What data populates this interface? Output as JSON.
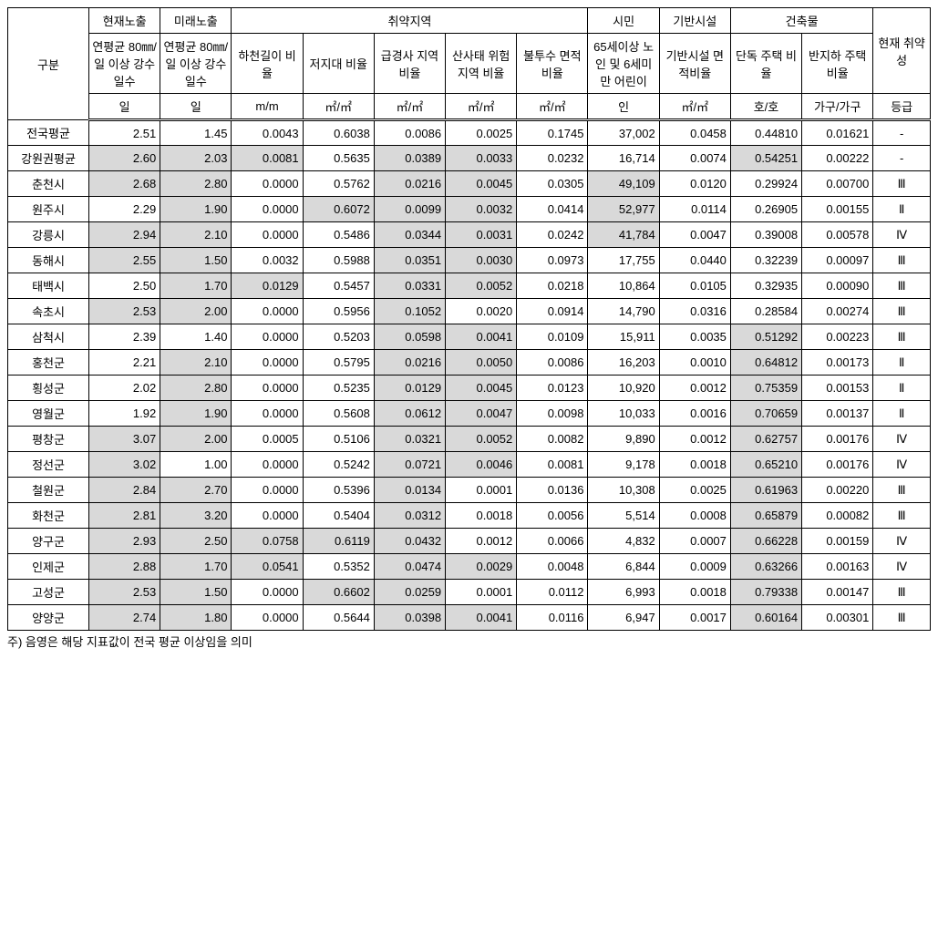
{
  "headers": {
    "region": "구분",
    "current_exposure": "현재노출",
    "future_exposure": "미래노출",
    "vulnerable_area": "취약지역",
    "citizen": "시민",
    "infrastructure": "기반시설",
    "building": "건축물",
    "current_vulnerability": "현재\n취약성",
    "sub": {
      "avg_precip_current": "연평균\n80㎜/일\n이상\n강수일수",
      "avg_precip_future": "연평균\n80㎜/일\n이상\n강수일수",
      "stream_length": "하천길이\n비율",
      "lowland": "저지대\n비율",
      "steep_slope": "급경사\n지역비율",
      "landslide": "산사태\n위험지역\n비율",
      "impervious": "불투수\n면적비율",
      "elderly_child": "65세이상\n노인 및\n6세미만\n어린이",
      "infra_area": "기반시설\n면적비율",
      "detached": "단독\n주택\n비율",
      "semi_basement": "반지하\n주택\n비율"
    },
    "units": {
      "day1": "일",
      "day2": "일",
      "mm": "m/m",
      "m2_1": "㎡/㎡",
      "m2_2": "㎡/㎡",
      "m2_3": "㎡/㎡",
      "m2_4": "㎡/㎡",
      "person": "인",
      "m2_5": "㎡/㎡",
      "ho": "호/호",
      "gagu": "가구/가구",
      "grade": "등급"
    }
  },
  "rows": [
    {
      "region": "전국평균",
      "v": [
        "2.51",
        "1.45",
        "0.0043",
        "0.6038",
        "0.0086",
        "0.0025",
        "0.1745",
        "37,002",
        "0.0458",
        "0.44810",
        "0.01621",
        "-"
      ],
      "s": [
        0,
        0,
        0,
        0,
        0,
        0,
        0,
        0,
        0,
        0,
        0,
        0
      ]
    },
    {
      "region": "강원권평균",
      "v": [
        "2.60",
        "2.03",
        "0.0081",
        "0.5635",
        "0.0389",
        "0.0033",
        "0.0232",
        "16,714",
        "0.0074",
        "0.54251",
        "0.00222",
        "-"
      ],
      "s": [
        1,
        1,
        1,
        0,
        1,
        1,
        0,
        0,
        0,
        1,
        0,
        0
      ]
    },
    {
      "region": "춘천시",
      "v": [
        "2.68",
        "2.80",
        "0.0000",
        "0.5762",
        "0.0216",
        "0.0045",
        "0.0305",
        "49,109",
        "0.0120",
        "0.29924",
        "0.00700",
        "Ⅲ"
      ],
      "s": [
        1,
        1,
        0,
        0,
        1,
        1,
        0,
        1,
        0,
        0,
        0,
        0
      ]
    },
    {
      "region": "원주시",
      "v": [
        "2.29",
        "1.90",
        "0.0000",
        "0.6072",
        "0.0099",
        "0.0032",
        "0.0414",
        "52,977",
        "0.0114",
        "0.26905",
        "0.00155",
        "Ⅱ"
      ],
      "s": [
        0,
        1,
        0,
        1,
        1,
        1,
        0,
        1,
        0,
        0,
        0,
        0
      ]
    },
    {
      "region": "강릉시",
      "v": [
        "2.94",
        "2.10",
        "0.0000",
        "0.5486",
        "0.0344",
        "0.0031",
        "0.0242",
        "41,784",
        "0.0047",
        "0.39008",
        "0.00578",
        "Ⅳ"
      ],
      "s": [
        1,
        1,
        0,
        0,
        1,
        1,
        0,
        1,
        0,
        0,
        0,
        0
      ]
    },
    {
      "region": "동해시",
      "v": [
        "2.55",
        "1.50",
        "0.0032",
        "0.5988",
        "0.0351",
        "0.0030",
        "0.0973",
        "17,755",
        "0.0440",
        "0.32239",
        "0.00097",
        "Ⅲ"
      ],
      "s": [
        1,
        1,
        0,
        0,
        1,
        1,
        0,
        0,
        0,
        0,
        0,
        0
      ]
    },
    {
      "region": "태백시",
      "v": [
        "2.50",
        "1.70",
        "0.0129",
        "0.5457",
        "0.0331",
        "0.0052",
        "0.0218",
        "10,864",
        "0.0105",
        "0.32935",
        "0.00090",
        "Ⅲ"
      ],
      "s": [
        0,
        1,
        1,
        0,
        1,
        1,
        0,
        0,
        0,
        0,
        0,
        0
      ]
    },
    {
      "region": "속초시",
      "v": [
        "2.53",
        "2.00",
        "0.0000",
        "0.5956",
        "0.1052",
        "0.0020",
        "0.0914",
        "14,790",
        "0.0316",
        "0.28584",
        "0.00274",
        "Ⅲ"
      ],
      "s": [
        1,
        1,
        0,
        0,
        1,
        0,
        0,
        0,
        0,
        0,
        0,
        0
      ]
    },
    {
      "region": "삼척시",
      "v": [
        "2.39",
        "1.40",
        "0.0000",
        "0.5203",
        "0.0598",
        "0.0041",
        "0.0109",
        "15,911",
        "0.0035",
        "0.51292",
        "0.00223",
        "Ⅲ"
      ],
      "s": [
        0,
        0,
        0,
        0,
        1,
        1,
        0,
        0,
        0,
        1,
        0,
        0
      ]
    },
    {
      "region": "홍천군",
      "v": [
        "2.21",
        "2.10",
        "0.0000",
        "0.5795",
        "0.0216",
        "0.0050",
        "0.0086",
        "16,203",
        "0.0010",
        "0.64812",
        "0.00173",
        "Ⅱ"
      ],
      "s": [
        0,
        1,
        0,
        0,
        1,
        1,
        0,
        0,
        0,
        1,
        0,
        0
      ]
    },
    {
      "region": "횡성군",
      "v": [
        "2.02",
        "2.80",
        "0.0000",
        "0.5235",
        "0.0129",
        "0.0045",
        "0.0123",
        "10,920",
        "0.0012",
        "0.75359",
        "0.00153",
        "Ⅱ"
      ],
      "s": [
        0,
        1,
        0,
        0,
        1,
        1,
        0,
        0,
        0,
        1,
        0,
        0
      ]
    },
    {
      "region": "영월군",
      "v": [
        "1.92",
        "1.90",
        "0.0000",
        "0.5608",
        "0.0612",
        "0.0047",
        "0.0098",
        "10,033",
        "0.0016",
        "0.70659",
        "0.00137",
        "Ⅱ"
      ],
      "s": [
        0,
        1,
        0,
        0,
        1,
        1,
        0,
        0,
        0,
        1,
        0,
        0
      ]
    },
    {
      "region": "평창군",
      "v": [
        "3.07",
        "2.00",
        "0.0005",
        "0.5106",
        "0.0321",
        "0.0052",
        "0.0082",
        "9,890",
        "0.0012",
        "0.62757",
        "0.00176",
        "Ⅳ"
      ],
      "s": [
        1,
        1,
        0,
        0,
        1,
        1,
        0,
        0,
        0,
        1,
        0,
        0
      ]
    },
    {
      "region": "정선군",
      "v": [
        "3.02",
        "1.00",
        "0.0000",
        "0.5242",
        "0.0721",
        "0.0046",
        "0.0081",
        "9,178",
        "0.0018",
        "0.65210",
        "0.00176",
        "Ⅳ"
      ],
      "s": [
        1,
        0,
        0,
        0,
        1,
        1,
        0,
        0,
        0,
        1,
        0,
        0
      ]
    },
    {
      "region": "철원군",
      "v": [
        "2.84",
        "2.70",
        "0.0000",
        "0.5396",
        "0.0134",
        "0.0001",
        "0.0136",
        "10,308",
        "0.0025",
        "0.61963",
        "0.00220",
        "Ⅲ"
      ],
      "s": [
        1,
        1,
        0,
        0,
        1,
        0,
        0,
        0,
        0,
        1,
        0,
        0
      ]
    },
    {
      "region": "화천군",
      "v": [
        "2.81",
        "3.20",
        "0.0000",
        "0.5404",
        "0.0312",
        "0.0018",
        "0.0056",
        "5,514",
        "0.0008",
        "0.65879",
        "0.00082",
        "Ⅲ"
      ],
      "s": [
        1,
        1,
        0,
        0,
        1,
        0,
        0,
        0,
        0,
        1,
        0,
        0
      ]
    },
    {
      "region": "양구군",
      "v": [
        "2.93",
        "2.50",
        "0.0758",
        "0.6119",
        "0.0432",
        "0.0012",
        "0.0066",
        "4,832",
        "0.0007",
        "0.66228",
        "0.00159",
        "Ⅳ"
      ],
      "s": [
        1,
        1,
        1,
        1,
        1,
        0,
        0,
        0,
        0,
        1,
        0,
        0
      ]
    },
    {
      "region": "인제군",
      "v": [
        "2.88",
        "1.70",
        "0.0541",
        "0.5352",
        "0.0474",
        "0.0029",
        "0.0048",
        "6,844",
        "0.0009",
        "0.63266",
        "0.00163",
        "Ⅳ"
      ],
      "s": [
        1,
        1,
        1,
        0,
        1,
        1,
        0,
        0,
        0,
        1,
        0,
        0
      ]
    },
    {
      "region": "고성군",
      "v": [
        "2.53",
        "1.50",
        "0.0000",
        "0.6602",
        "0.0259",
        "0.0001",
        "0.0112",
        "6,993",
        "0.0018",
        "0.79338",
        "0.00147",
        "Ⅲ"
      ],
      "s": [
        1,
        1,
        0,
        1,
        1,
        0,
        0,
        0,
        0,
        1,
        0,
        0
      ]
    },
    {
      "region": "양양군",
      "v": [
        "2.74",
        "1.80",
        "0.0000",
        "0.5644",
        "0.0398",
        "0.0041",
        "0.0116",
        "6,947",
        "0.0017",
        "0.60164",
        "0.00301",
        "Ⅲ"
      ],
      "s": [
        1,
        1,
        0,
        0,
        1,
        1,
        0,
        0,
        0,
        1,
        0,
        0
      ]
    }
  ],
  "footnote": "주) 음영은 해당 지표값이 전국 평균 이상임을 의미"
}
